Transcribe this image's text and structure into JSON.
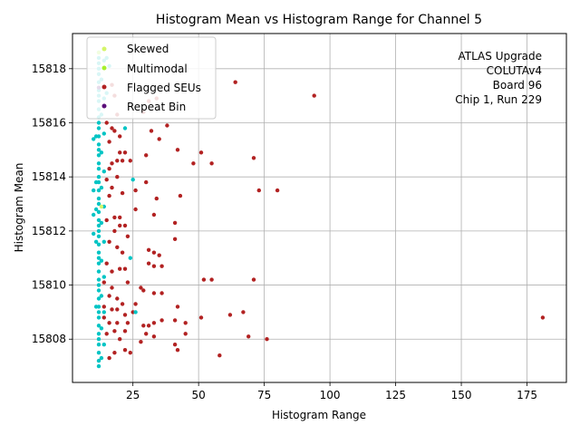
{
  "chart_data": {
    "type": "scatter",
    "title": "Histogram Mean vs Histogram Range for Channel 5",
    "xlabel": "Histogram Range",
    "ylabel": "Histogram Mean",
    "xlim": [
      2,
      190
    ],
    "ylim": [
      15806.4,
      15819.3
    ],
    "xticks": [
      25,
      50,
      75,
      100,
      125,
      150,
      175
    ],
    "yticks": [
      15808,
      15810,
      15812,
      15814,
      15816,
      15818
    ],
    "grid": true,
    "legend_position": "top-left",
    "annotation": [
      "ATLAS Upgrade",
      "COLUTAv4",
      "Board 96",
      "Chip 1, Run 229"
    ],
    "colors": {
      "Skewed": "#d4f56a",
      "Multimodal": "#a6f02a",
      "Flagged SEUs": "#b22222",
      "Repeat Bin": "#5b0f7a",
      "normal": "#00c4c4"
    },
    "legend": [
      "Skewed",
      "Multimodal",
      "Flagged SEUs",
      "Repeat Bin"
    ],
    "series": [
      {
        "name": "Flagged SEUs",
        "points": [
          [
            94,
            15817.0
          ],
          [
            64,
            15817.5
          ],
          [
            71,
            15814.7
          ],
          [
            48,
            15814.5
          ],
          [
            55,
            15814.5
          ],
          [
            51,
            15814.9
          ],
          [
            42,
            15815.0
          ],
          [
            38,
            15815.9
          ],
          [
            35,
            15815.4
          ],
          [
            32,
            15815.7
          ],
          [
            30,
            15814.8
          ],
          [
            29,
            15816.4
          ],
          [
            31,
            15816.8
          ],
          [
            34,
            15816.9
          ],
          [
            73,
            15813.5
          ],
          [
            80,
            15813.5
          ],
          [
            43,
            15813.3
          ],
          [
            34,
            15813.2
          ],
          [
            33,
            15812.6
          ],
          [
            26,
            15812.8
          ],
          [
            26,
            15813.5
          ],
          [
            30,
            15813.8
          ],
          [
            41,
            15812.3
          ],
          [
            41,
            15811.7
          ],
          [
            31,
            15811.3
          ],
          [
            33,
            15811.2
          ],
          [
            35,
            15811.1
          ],
          [
            31,
            15810.8
          ],
          [
            33,
            15810.7
          ],
          [
            36,
            15810.7
          ],
          [
            52,
            15810.2
          ],
          [
            55,
            15810.2
          ],
          [
            71,
            15810.2
          ],
          [
            28,
            15809.9
          ],
          [
            29,
            15809.8
          ],
          [
            33,
            15809.7
          ],
          [
            36,
            15809.7
          ],
          [
            42,
            15809.2
          ],
          [
            26,
            15809.3
          ],
          [
            25,
            15809.0
          ],
          [
            51,
            15808.8
          ],
          [
            62,
            15808.9
          ],
          [
            67,
            15809.0
          ],
          [
            41,
            15808.7
          ],
          [
            36,
            15808.7
          ],
          [
            33,
            15808.6
          ],
          [
            31,
            15808.5
          ],
          [
            29,
            15808.5
          ],
          [
            45,
            15808.6
          ],
          [
            45,
            15808.2
          ],
          [
            69,
            15808.1
          ],
          [
            76,
            15808.0
          ],
          [
            30,
            15808.2
          ],
          [
            33,
            15808.1
          ],
          [
            28,
            15807.9
          ],
          [
            41,
            15807.8
          ],
          [
            42,
            15807.6
          ],
          [
            58,
            15807.4
          ],
          [
            181,
            15808.8
          ],
          [
            24,
            15807.5
          ],
          [
            22,
            15807.6
          ],
          [
            18,
            15807.5
          ],
          [
            16,
            15807.3
          ],
          [
            17,
            15817.4
          ],
          [
            18,
            15817.0
          ],
          [
            14,
            15816.6
          ],
          [
            19,
            15816.3
          ],
          [
            15,
            15816.0
          ],
          [
            17,
            15815.8
          ],
          [
            18,
            15815.7
          ],
          [
            20,
            15815.5
          ],
          [
            16,
            15815.3
          ],
          [
            20,
            15814.9
          ],
          [
            22,
            15814.9
          ],
          [
            17,
            15814.5
          ],
          [
            19,
            15814.6
          ],
          [
            21,
            15814.6
          ],
          [
            24,
            15814.6
          ],
          [
            16,
            15814.3
          ],
          [
            19,
            15814.0
          ],
          [
            15,
            15813.9
          ],
          [
            17,
            15813.6
          ],
          [
            21,
            15813.4
          ],
          [
            16,
            15813.3
          ],
          [
            18,
            15812.5
          ],
          [
            20,
            15812.5
          ],
          [
            15,
            15812.4
          ],
          [
            18,
            15812.0
          ],
          [
            20,
            15812.2
          ],
          [
            22,
            15812.2
          ],
          [
            23,
            15811.8
          ],
          [
            16,
            15811.6
          ],
          [
            19,
            15811.4
          ],
          [
            21,
            15811.2
          ],
          [
            15,
            15810.8
          ],
          [
            17,
            15810.5
          ],
          [
            20,
            15810.6
          ],
          [
            22,
            15810.6
          ],
          [
            23,
            15810.1
          ],
          [
            14,
            15810.1
          ],
          [
            17,
            15809.9
          ],
          [
            16,
            15809.6
          ],
          [
            19,
            15809.5
          ],
          [
            21,
            15809.3
          ],
          [
            14,
            15809.2
          ],
          [
            17,
            15809.1
          ],
          [
            19,
            15809.1
          ],
          [
            22,
            15808.9
          ],
          [
            14,
            15808.8
          ],
          [
            16,
            15808.6
          ],
          [
            19,
            15808.6
          ],
          [
            23,
            15808.6
          ],
          [
            15,
            15808.2
          ],
          [
            18,
            15808.3
          ],
          [
            20,
            15808.0
          ],
          [
            22,
            15808.3
          ]
        ]
      },
      {
        "name": "normal",
        "points": [
          [
            12,
            15818.6
          ],
          [
            12,
            15818.4
          ],
          [
            12,
            15818.2
          ],
          [
            12,
            15818.0
          ],
          [
            12,
            15817.8
          ],
          [
            12,
            15817.5
          ],
          [
            12,
            15817.2
          ],
          [
            12,
            15817.0
          ],
          [
            12,
            15816.8
          ],
          [
            12,
            15816.5
          ],
          [
            12,
            15816.2
          ],
          [
            12,
            15816.0
          ],
          [
            12,
            15815.8
          ],
          [
            12,
            15815.5
          ],
          [
            12,
            15815.2
          ],
          [
            12,
            15815.0
          ],
          [
            12,
            15814.8
          ],
          [
            12,
            15814.5
          ],
          [
            12,
            15814.3
          ],
          [
            12,
            15814.0
          ],
          [
            12,
            15813.8
          ],
          [
            12,
            15813.5
          ],
          [
            12,
            15813.2
          ],
          [
            12,
            15813.0
          ],
          [
            12,
            15812.7
          ],
          [
            12,
            15812.4
          ],
          [
            12,
            15812.2
          ],
          [
            12,
            15812.0
          ],
          [
            12,
            15811.8
          ],
          [
            12,
            15811.5
          ],
          [
            12,
            15811.2
          ],
          [
            12,
            15811.0
          ],
          [
            12,
            15810.8
          ],
          [
            12,
            15810.5
          ],
          [
            12,
            15810.2
          ],
          [
            12,
            15810.0
          ],
          [
            12,
            15809.8
          ],
          [
            12,
            15809.5
          ],
          [
            12,
            15809.2
          ],
          [
            12,
            15809.0
          ],
          [
            12,
            15808.8
          ],
          [
            12,
            15808.5
          ],
          [
            12,
            15808.2
          ],
          [
            12,
            15808.0
          ],
          [
            12,
            15807.8
          ],
          [
            12,
            15807.5
          ],
          [
            12,
            15807.2
          ],
          [
            12,
            15807.0
          ],
          [
            11,
            15815.5
          ],
          [
            11,
            15813.8
          ],
          [
            11,
            15812.8
          ],
          [
            11,
            15811.6
          ],
          [
            11,
            15809.2
          ],
          [
            10,
            15815.4
          ],
          [
            10,
            15813.5
          ],
          [
            10,
            15812.6
          ],
          [
            10,
            15811.9
          ],
          [
            14,
            15818.3
          ],
          [
            13,
            15817.6
          ],
          [
            14,
            15816.9
          ],
          [
            13,
            15816.3
          ],
          [
            14,
            15815.6
          ],
          [
            13,
            15814.9
          ],
          [
            14,
            15814.2
          ],
          [
            13,
            15813.6
          ],
          [
            14,
            15812.9
          ],
          [
            13,
            15812.3
          ],
          [
            14,
            15811.6
          ],
          [
            13,
            15810.9
          ],
          [
            14,
            15810.3
          ],
          [
            13,
            15809.6
          ],
          [
            14,
            15809.0
          ],
          [
            13,
            15808.4
          ],
          [
            14,
            15807.8
          ],
          [
            13,
            15807.3
          ],
          [
            15,
            15818.4
          ],
          [
            15,
            15817.1
          ],
          [
            16,
            15818.1
          ],
          [
            25,
            15813.9
          ],
          [
            24,
            15811.0
          ],
          [
            26,
            15809.0
          ],
          [
            22,
            15815.8
          ]
        ]
      },
      {
        "name": "Skewed",
        "points": [
          [
            13,
            15812.9
          ]
        ]
      },
      {
        "name": "Multimodal",
        "points": [
          [
            12,
            15818.6
          ]
        ]
      },
      {
        "name": "Repeat Bin",
        "points": [
          [
            12,
            15817.3
          ]
        ]
      }
    ]
  }
}
